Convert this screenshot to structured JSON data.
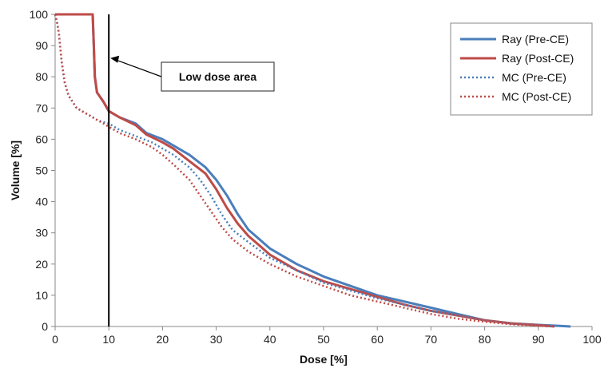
{
  "chart_data": {
    "type": "line",
    "xlabel": "Dose [%]",
    "ylabel": "Volume [%]",
    "xlim": [
      0,
      100
    ],
    "ylim": [
      0,
      100
    ],
    "x_ticks": [
      0,
      10,
      20,
      30,
      40,
      50,
      60,
      70,
      80,
      90,
      100
    ],
    "y_ticks": [
      0,
      10,
      20,
      30,
      40,
      50,
      60,
      70,
      80,
      90,
      100
    ],
    "grid": false,
    "legend_position": "top-right",
    "series": [
      {
        "name": "Ray (Pre-CE)",
        "color": "#4a7ebb",
        "style": "solid",
        "points": [
          [
            0,
            100
          ],
          [
            7,
            100
          ],
          [
            7.2,
            90
          ],
          [
            7.4,
            80
          ],
          [
            7.8,
            75
          ],
          [
            9,
            72
          ],
          [
            10,
            69
          ],
          [
            12,
            67
          ],
          [
            15,
            65
          ],
          [
            17,
            62
          ],
          [
            20,
            60
          ],
          [
            22,
            58
          ],
          [
            25,
            55
          ],
          [
            28,
            51
          ],
          [
            30,
            47
          ],
          [
            32,
            42
          ],
          [
            34,
            36
          ],
          [
            36,
            31
          ],
          [
            38,
            28
          ],
          [
            40,
            25
          ],
          [
            45,
            20
          ],
          [
            50,
            16
          ],
          [
            55,
            13
          ],
          [
            60,
            10
          ],
          [
            65,
            8
          ],
          [
            70,
            6
          ],
          [
            75,
            4
          ],
          [
            80,
            2
          ],
          [
            85,
            1
          ],
          [
            90,
            0.5
          ],
          [
            94,
            0.2
          ],
          [
            96,
            0
          ]
        ]
      },
      {
        "name": "Ray (Post-CE)",
        "color": "#be4b48",
        "style": "solid",
        "points": [
          [
            0,
            100
          ],
          [
            7,
            100
          ],
          [
            7.2,
            90
          ],
          [
            7.4,
            80
          ],
          [
            7.8,
            75
          ],
          [
            9,
            72
          ],
          [
            10,
            69
          ],
          [
            12,
            67
          ],
          [
            15,
            64.5
          ],
          [
            17,
            61.5
          ],
          [
            20,
            59
          ],
          [
            22,
            57
          ],
          [
            25,
            53
          ],
          [
            28,
            49
          ],
          [
            30,
            44
          ],
          [
            32,
            38
          ],
          [
            34,
            33
          ],
          [
            36,
            29
          ],
          [
            38,
            26
          ],
          [
            40,
            23
          ],
          [
            45,
            18
          ],
          [
            50,
            14.5
          ],
          [
            55,
            12
          ],
          [
            60,
            9.5
          ],
          [
            65,
            7
          ],
          [
            70,
            5
          ],
          [
            75,
            3.5
          ],
          [
            80,
            2
          ],
          [
            85,
            1
          ],
          [
            90,
            0.4
          ],
          [
            93,
            0
          ]
        ]
      },
      {
        "name": "MC (Pre-CE)",
        "color": "#4a7ebb",
        "style": "dotted",
        "points": [
          [
            0,
            100
          ],
          [
            0.3,
            98
          ],
          [
            0.7,
            94
          ],
          [
            1.2,
            85
          ],
          [
            1.8,
            78
          ],
          [
            2.5,
            74
          ],
          [
            4,
            70
          ],
          [
            6,
            68
          ],
          [
            8,
            66
          ],
          [
            10,
            65
          ],
          [
            12,
            63
          ],
          [
            15,
            61
          ],
          [
            18,
            59
          ],
          [
            20,
            57
          ],
          [
            22,
            55
          ],
          [
            25,
            51
          ],
          [
            27,
            47
          ],
          [
            29,
            42
          ],
          [
            31,
            36
          ],
          [
            33,
            31
          ],
          [
            36,
            27
          ],
          [
            40,
            22
          ],
          [
            45,
            18
          ],
          [
            50,
            14
          ],
          [
            55,
            11.5
          ],
          [
            60,
            9
          ],
          [
            65,
            7
          ],
          [
            70,
            5
          ],
          [
            75,
            3.5
          ],
          [
            80,
            2
          ],
          [
            85,
            1
          ],
          [
            90,
            0.3
          ],
          [
            93,
            0
          ]
        ]
      },
      {
        "name": "MC (Post-CE)",
        "color": "#be4b48",
        "style": "dotted",
        "points": [
          [
            0,
            100
          ],
          [
            0.3,
            98
          ],
          [
            0.7,
            94
          ],
          [
            1.2,
            85
          ],
          [
            1.8,
            78
          ],
          [
            2.5,
            74
          ],
          [
            4,
            70
          ],
          [
            6,
            68
          ],
          [
            8,
            66
          ],
          [
            10,
            64
          ],
          [
            12,
            62
          ],
          [
            15,
            60
          ],
          [
            18,
            57.5
          ],
          [
            20,
            55
          ],
          [
            22,
            52
          ],
          [
            25,
            47
          ],
          [
            27,
            42
          ],
          [
            29,
            37
          ],
          [
            31,
            32
          ],
          [
            33,
            28
          ],
          [
            36,
            24
          ],
          [
            40,
            20
          ],
          [
            45,
            16
          ],
          [
            50,
            13
          ],
          [
            55,
            10
          ],
          [
            60,
            8
          ],
          [
            65,
            6
          ],
          [
            70,
            4
          ],
          [
            75,
            2.5
          ],
          [
            80,
            1.5
          ],
          [
            85,
            0.7
          ],
          [
            90,
            0.2
          ],
          [
            92,
            0
          ]
        ]
      }
    ],
    "vertical_line": {
      "x": 10
    },
    "annotation": {
      "text": "Low dose area",
      "arrow_target": [
        10,
        86
      ]
    }
  }
}
